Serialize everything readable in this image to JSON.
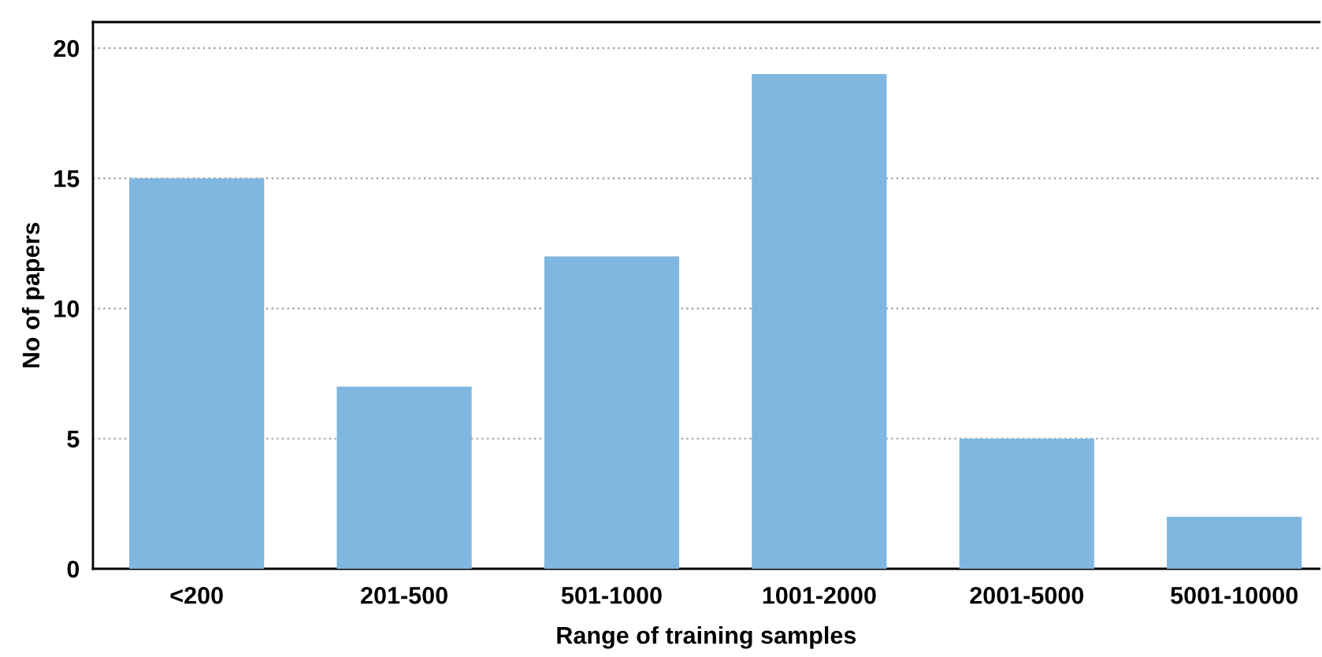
{
  "chart_data": {
    "type": "bar",
    "xlabel": "Range of training samples",
    "ylabel": "No of papers",
    "categories": [
      "<200",
      "201-500",
      "501-1000",
      "1001-2000",
      "2001-5000",
      "5001-10000"
    ],
    "values": [
      15,
      7,
      12,
      19,
      5,
      2
    ],
    "color": "#80b7e0",
    "ylim": [
      0,
      21
    ],
    "yticks": [
      0,
      5,
      10,
      15,
      20
    ],
    "grid": "y"
  }
}
